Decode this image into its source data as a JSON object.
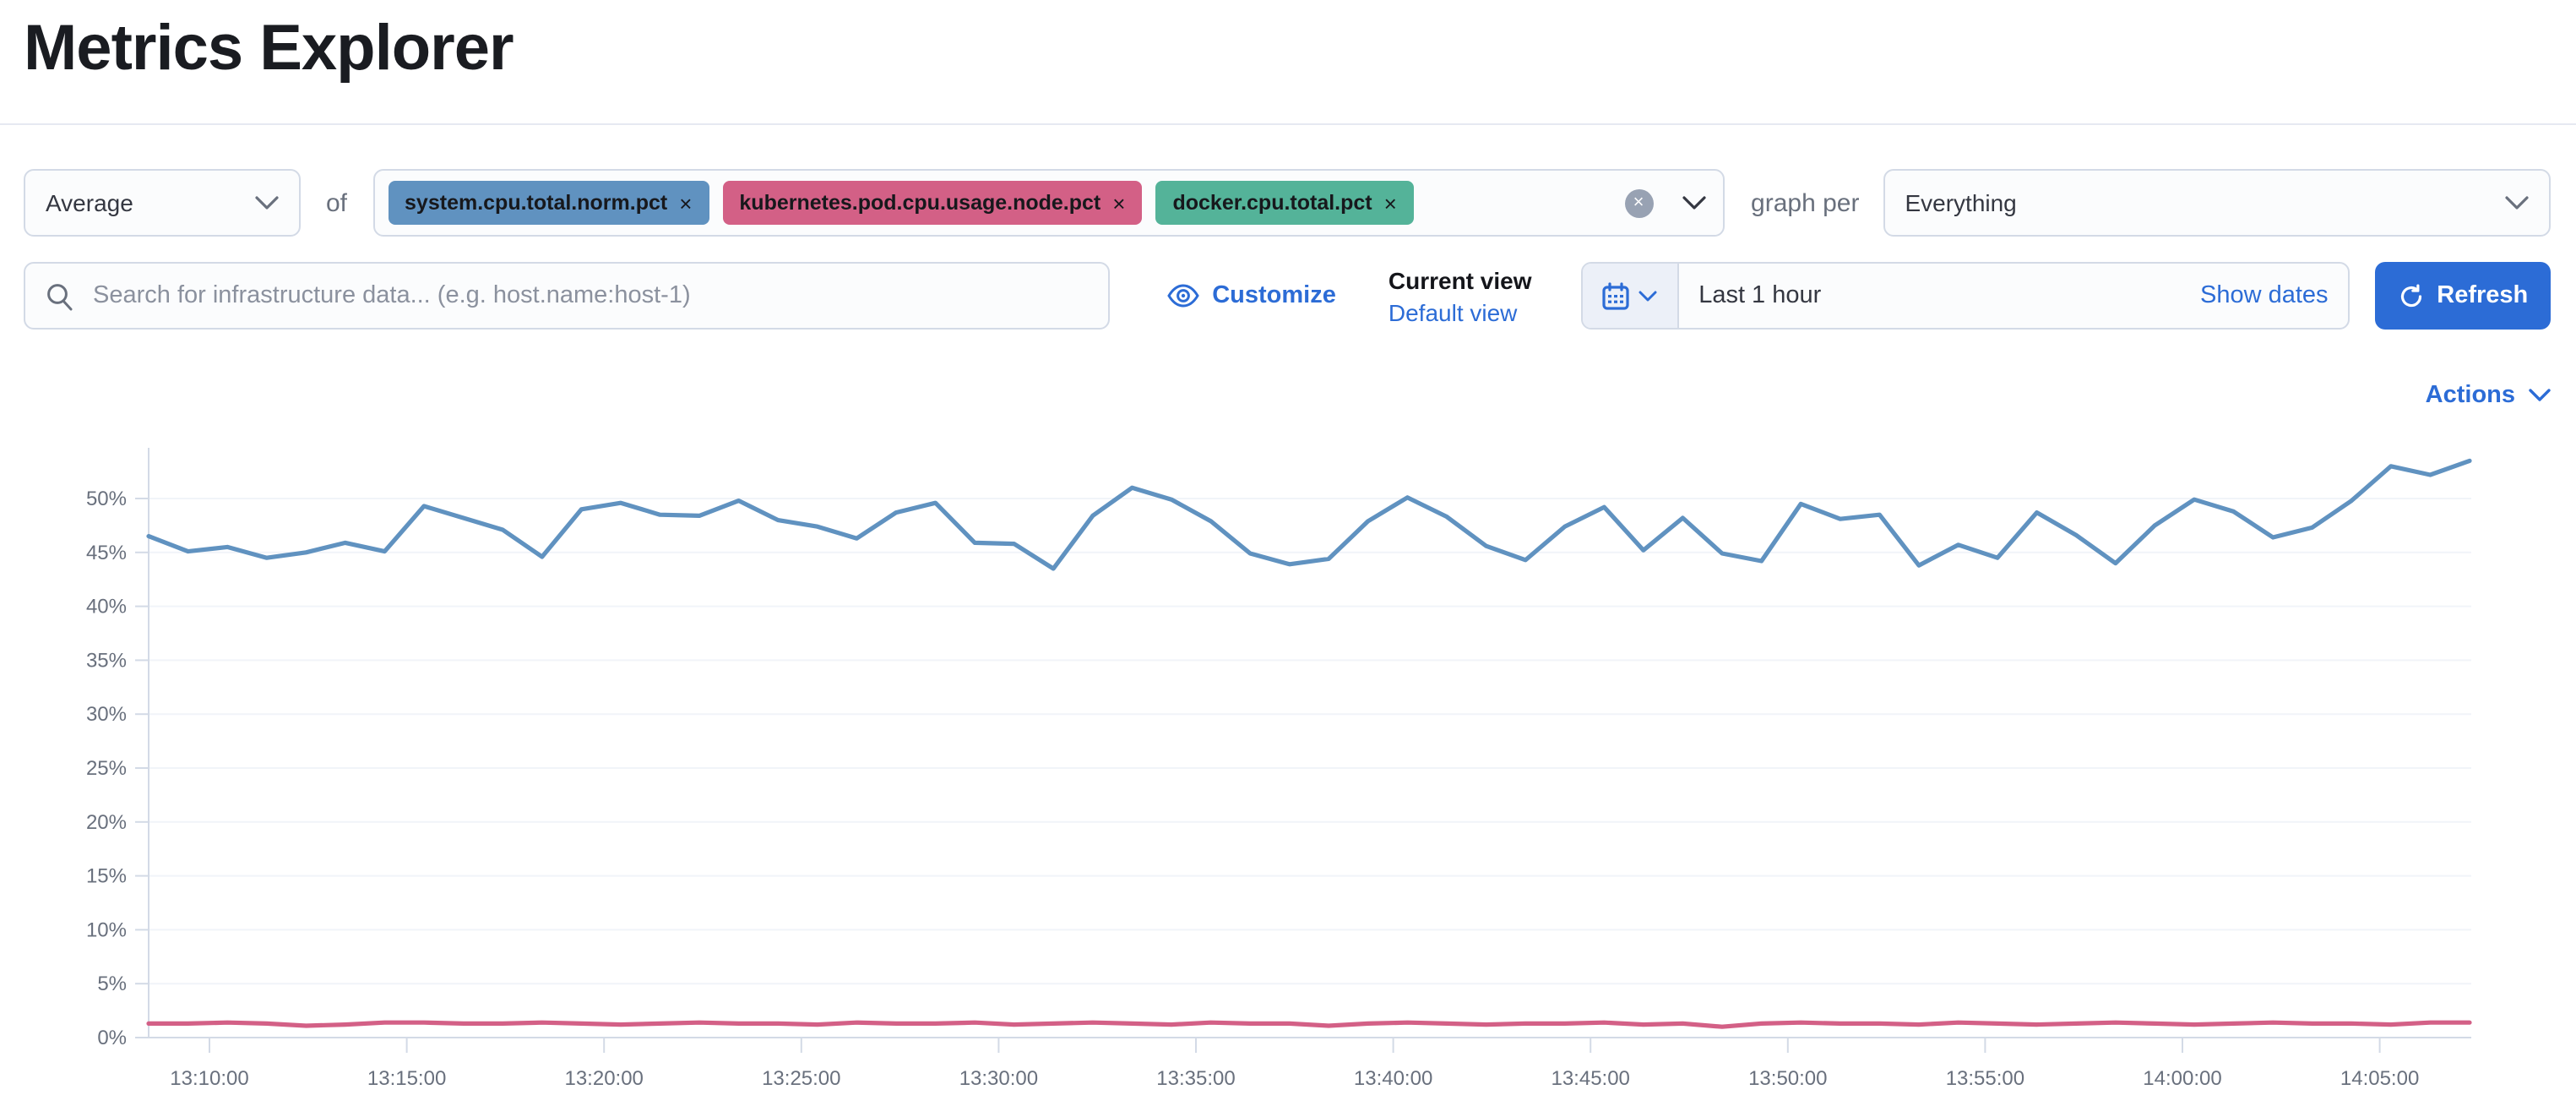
{
  "page": {
    "title": "Metrics Explorer"
  },
  "row1": {
    "aggregation": {
      "value": "Average"
    },
    "of_label": "of",
    "metrics": [
      {
        "label": "system.cpu.total.norm.pct",
        "color": "#6092C0"
      },
      {
        "label": "kubernetes.pod.cpu.usage.node.pct",
        "color": "#D36086"
      },
      {
        "label": "docker.cpu.total.pct",
        "color": "#54B399"
      }
    ],
    "remove_icon": "×",
    "clear_icon": "×",
    "graph_per_label": "graph per",
    "graph_per": {
      "value": "Everything"
    }
  },
  "row2": {
    "search": {
      "placeholder": "Search for infrastructure data... (e.g. host.name:host-1)"
    },
    "customize_label": "Customize",
    "current_view_label": "Current view",
    "default_view_label": "Default view",
    "time_range": "Last 1 hour",
    "show_dates_label": "Show dates",
    "refresh_label": "Refresh"
  },
  "actions_label": "Actions",
  "colors": {
    "link_blue": "#2c6cd6",
    "series_blue": "#6092C0",
    "series_pink": "#D36086",
    "badge_green": "#54B399",
    "axis_text": "#69707d",
    "axis_line": "#d3dae6",
    "gridline": "#f1f4f9"
  },
  "chart_data": {
    "type": "line",
    "title": "",
    "xlabel": "",
    "ylabel": "",
    "grid": "subtle horizontal",
    "legend": "none",
    "ylim": [
      0,
      54.8
    ],
    "y_ticks": [
      "0%",
      "5%",
      "10%",
      "15%",
      "20%",
      "25%",
      "30%",
      "35%",
      "40%",
      "45%",
      "50%"
    ],
    "x_ticks": [
      "13:10:00",
      "13:15:00",
      "13:20:00",
      "13:25:00",
      "13:30:00",
      "13:35:00",
      "13:40:00",
      "13:45:00",
      "13:50:00",
      "13:55:00",
      "14:00:00",
      "14:05:00"
    ],
    "x_range_approx": [
      "13:08:30",
      "14:07:30"
    ],
    "series": [
      {
        "name": "system.cpu.total.norm.pct",
        "color": "#6092C0",
        "values": [
          46.5,
          45.1,
          45.5,
          44.5,
          45.0,
          45.9,
          45.1,
          49.3,
          48.2,
          47.1,
          44.6,
          49.0,
          49.6,
          48.5,
          48.4,
          49.8,
          48.0,
          47.4,
          46.3,
          48.7,
          49.6,
          45.9,
          45.8,
          43.5,
          48.4,
          51.0,
          49.9,
          47.9,
          44.9,
          43.9,
          44.4,
          47.9,
          50.1,
          48.3,
          45.6,
          44.3,
          47.4,
          49.2,
          45.2,
          48.2,
          44.9,
          44.2,
          49.5,
          48.1,
          48.5,
          43.8,
          45.7,
          44.5,
          48.7,
          46.6,
          44.0,
          47.5,
          49.9,
          48.8,
          46.4,
          47.3,
          49.8,
          53.0,
          52.2,
          53.5
        ]
      },
      {
        "name": "kubernetes.pod.cpu.usage.node.pct",
        "color": "#D36086",
        "values": [
          1.3,
          1.3,
          1.4,
          1.3,
          1.1,
          1.2,
          1.4,
          1.4,
          1.3,
          1.3,
          1.4,
          1.3,
          1.2,
          1.3,
          1.4,
          1.3,
          1.3,
          1.2,
          1.4,
          1.3,
          1.3,
          1.4,
          1.2,
          1.3,
          1.4,
          1.3,
          1.2,
          1.4,
          1.3,
          1.3,
          1.1,
          1.3,
          1.4,
          1.3,
          1.2,
          1.3,
          1.3,
          1.4,
          1.2,
          1.3,
          1.0,
          1.3,
          1.4,
          1.3,
          1.3,
          1.2,
          1.4,
          1.3,
          1.2,
          1.3,
          1.4,
          1.3,
          1.2,
          1.3,
          1.4,
          1.3,
          1.3,
          1.2,
          1.4,
          1.4
        ]
      }
    ]
  }
}
